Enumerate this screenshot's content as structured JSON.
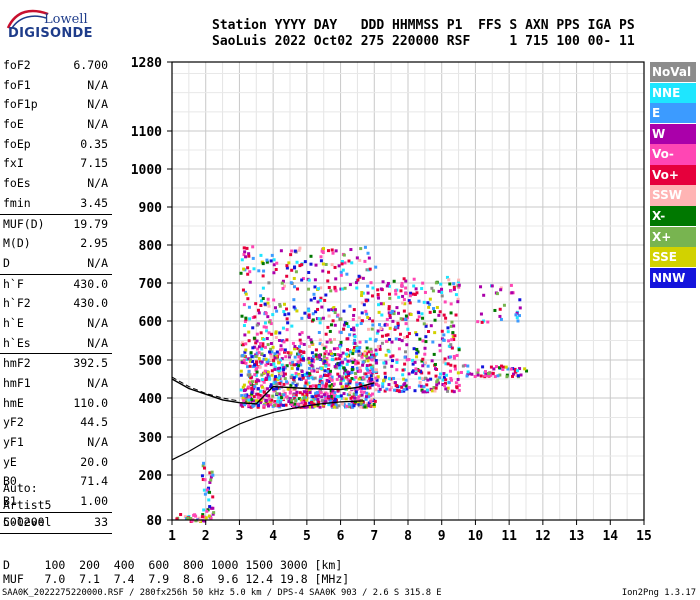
{
  "logo": {
    "line1": "Lowell",
    "line2": "DIGISONDE"
  },
  "header": {
    "row1": "Station YYYY DAY   DDD HHMMSS P1  FFS S AXN PPS IGA PS",
    "row2": "SaoLuis 2022 Oct02 275 220000 RSF     1 715 100 00- 11"
  },
  "params": [
    {
      "label": "foF2",
      "value": "6.700"
    },
    {
      "label": "foF1",
      "value": "N/A"
    },
    {
      "label": "foF1p",
      "value": "N/A"
    },
    {
      "label": "foE",
      "value": "N/A"
    },
    {
      "label": "foEp",
      "value": "0.35"
    },
    {
      "label": "fxI",
      "value": "7.15"
    },
    {
      "label": "foEs",
      "value": "N/A"
    },
    {
      "label": "fmin",
      "value": "3.45",
      "sep_after": true
    },
    {
      "label": "MUF(D)",
      "value": "19.79"
    },
    {
      "label": "M(D)",
      "value": "2.95"
    },
    {
      "label": "D",
      "value": "N/A",
      "sep_after": true
    },
    {
      "label": "h`F",
      "value": "430.0"
    },
    {
      "label": "h`F2",
      "value": "430.0"
    },
    {
      "label": "h`E",
      "value": "N/A"
    },
    {
      "label": "h`Es",
      "value": "N/A",
      "sep_after": true
    },
    {
      "label": "hmF2",
      "value": "392.5"
    },
    {
      "label": "hmF1",
      "value": "N/A"
    },
    {
      "label": "hmE",
      "value": "110.0"
    },
    {
      "label": "yF2",
      "value": "44.5"
    },
    {
      "label": "yF1",
      "value": "N/A"
    },
    {
      "label": "yE",
      "value": "20.0"
    },
    {
      "label": "B0",
      "value": "71.4"
    },
    {
      "label": "B1",
      "value": "1.00",
      "sep_after": true
    },
    {
      "label": "C-level",
      "value": "33",
      "sep_after": true
    }
  ],
  "auto": {
    "line1": "Auto:",
    "line2": "Artist5",
    "line3": "500200"
  },
  "legend": [
    {
      "label": "NoVal",
      "color": "#8c8c8c"
    },
    {
      "label": "NNE",
      "color": "#1ee6ff"
    },
    {
      "label": "E",
      "color": "#3c9bff"
    },
    {
      "label": "W",
      "color": "#aa00aa"
    },
    {
      "label": "Vo-",
      "color": "#ff46b4"
    },
    {
      "label": "Vo+",
      "color": "#e6003c"
    },
    {
      "label": "SSW",
      "color": "#ffb4b4"
    },
    {
      "label": "X-",
      "color": "#007800"
    },
    {
      "label": "X+",
      "color": "#78b450"
    },
    {
      "label": "SSE",
      "color": "#d2d200"
    },
    {
      "label": "NNW",
      "color": "#1414dc"
    }
  ],
  "muf_table": {
    "row_d": "D     100  200  400  600  800 1000 1500 3000 [km]",
    "row_muf": "MUF   7.0  7.1  7.4  7.9  8.6  9.6 12.4 19.8 [MHz]"
  },
  "footer": {
    "left": "SAA0K_2022275220000.RSF / 280fx256h 50 kHz 5.0 km / DPS-4 SAA0K 903 / 2.6 S 315.8 E",
    "right": "Ion2Png 1.3.17"
  },
  "chart_data": {
    "type": "scatter",
    "x_ticks": [
      "1",
      "2",
      "3",
      "4",
      "5",
      "6",
      "7",
      "8",
      "9",
      "10",
      "11",
      "12",
      "13",
      "14",
      "15"
    ],
    "y_ticks": [
      "80",
      "200",
      "300",
      "400",
      "500",
      "600",
      "700",
      "800",
      "900",
      "1000",
      "1100",
      "1280"
    ],
    "xlim": [
      1,
      15
    ],
    "ylim": [
      80,
      1280
    ],
    "grid": true,
    "legend_position": "right",
    "profile_curve": [
      [
        1.0,
        240
      ],
      [
        1.5,
        262
      ],
      [
        2.0,
        288
      ],
      [
        2.5,
        312
      ],
      [
        3.0,
        333
      ],
      [
        3.5,
        350
      ],
      [
        4.0,
        363
      ],
      [
        4.5,
        372
      ],
      [
        5.0,
        380
      ],
      [
        5.5,
        386
      ],
      [
        6.0,
        390
      ],
      [
        6.5,
        392
      ],
      [
        6.7,
        392.5
      ]
    ],
    "trace_curve": [
      [
        1.0,
        450
      ],
      [
        1.5,
        425
      ],
      [
        2.0,
        410
      ],
      [
        2.5,
        395
      ],
      [
        3.0,
        388
      ],
      [
        3.5,
        385
      ],
      [
        4.0,
        430
      ],
      [
        5.0,
        425
      ],
      [
        6.0,
        422
      ],
      [
        6.5,
        428
      ],
      [
        7.0,
        440
      ]
    ],
    "dashed_curve": [
      [
        1.0,
        455
      ],
      [
        1.5,
        430
      ],
      [
        2.0,
        412
      ],
      [
        2.5,
        400
      ],
      [
        3.0,
        392
      ]
    ],
    "echo_regions": [
      {
        "x": [
          3.0,
          7.0
        ],
        "y": [
          380,
          520
        ],
        "density": 900
      },
      {
        "x": [
          3.0,
          7.0
        ],
        "y": [
          520,
          800
        ],
        "density": 420
      },
      {
        "x": [
          7.0,
          9.5
        ],
        "y": [
          420,
          720
        ],
        "density": 380
      },
      {
        "x": [
          9.5,
          11.5
        ],
        "y": [
          460,
          490
        ],
        "density": 60
      },
      {
        "x": [
          10.0,
          11.3
        ],
        "y": [
          600,
          700
        ],
        "density": 30
      },
      {
        "x": [
          1.8,
          2.2
        ],
        "y": [
          80,
          240
        ],
        "density": 40
      },
      {
        "x": [
          1.0,
          2.0
        ],
        "y": [
          80,
          100
        ],
        "density": 20
      }
    ]
  }
}
